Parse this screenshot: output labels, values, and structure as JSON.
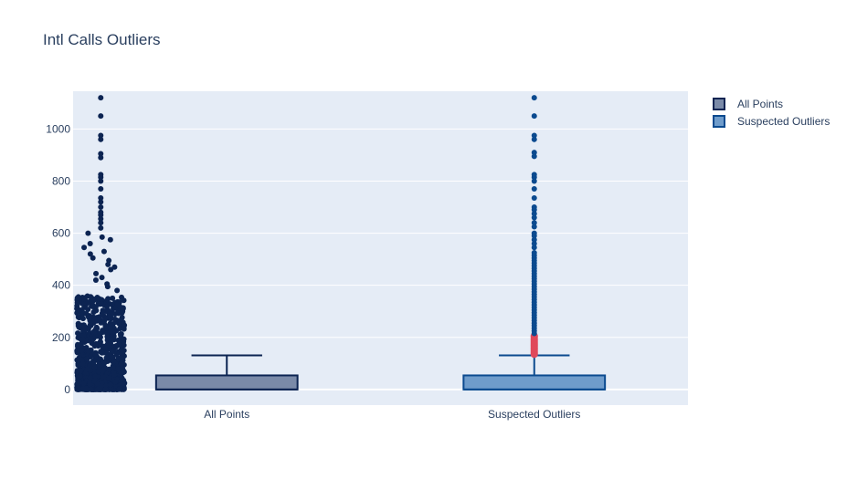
{
  "chart_data": {
    "type": "box",
    "title": "Intl Calls Outliers",
    "xlabel": "",
    "ylabel": "",
    "categories": [
      "All Points",
      "Suspected Outliers"
    ],
    "ylim": [
      -60,
      1145
    ],
    "yticks": [
      0,
      200,
      400,
      600,
      800,
      1000
    ],
    "legend_position": "top-right",
    "grid": true,
    "series": [
      {
        "name": "All Points",
        "boxpoints": "all",
        "fill_color": "#7a8aa8",
        "line_color": "#0c2452",
        "point_color": "#0c2452",
        "q1": 0,
        "median": 0,
        "q3": 54,
        "whisker_low": 0,
        "whisker_high": 131,
        "max": 1120
      },
      {
        "name": "Suspected Outliers",
        "boxpoints": "suspectedoutliers",
        "fill_color": "#6f9ccb",
        "line_color": "#0b4a8f",
        "point_color": "#0b4a8f",
        "suspected_outlier_color": "#e0485b",
        "q1": 0,
        "median": 0,
        "q3": 54,
        "whisker_low": 0,
        "whisker_high": 131,
        "suspected_outliers": [
          135,
          140,
          145,
          150,
          155,
          160,
          165,
          170,
          175,
          180,
          185,
          190,
          195,
          200,
          205
        ],
        "outliers": [
          215,
          225,
          235,
          245,
          255,
          265,
          275,
          285,
          295,
          305,
          315,
          325,
          335,
          345,
          355,
          365,
          375,
          385,
          395,
          405,
          415,
          425,
          435,
          445,
          455,
          465,
          475,
          485,
          495,
          505,
          515,
          525,
          545,
          560,
          575,
          590,
          600,
          625,
          640,
          660,
          675,
          690,
          700,
          735,
          770,
          800,
          815,
          825,
          895,
          910,
          960,
          975,
          1050,
          1120
        ]
      }
    ]
  }
}
